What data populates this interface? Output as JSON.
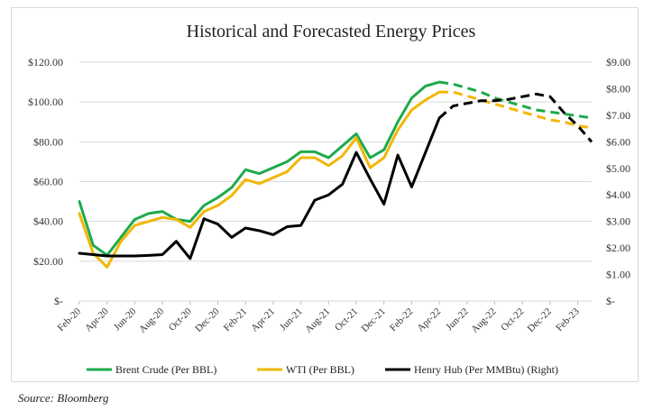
{
  "chart_data": {
    "type": "line",
    "title": "Historical and Forecasted Energy Prices",
    "x": [
      "Feb-20",
      "Mar-20",
      "Apr-20",
      "May-20",
      "Jun-20",
      "Jul-20",
      "Aug-20",
      "Sep-20",
      "Oct-20",
      "Nov-20",
      "Dec-20",
      "Jan-21",
      "Feb-21",
      "Mar-21",
      "Apr-21",
      "May-21",
      "Jun-21",
      "Jul-21",
      "Aug-21",
      "Sep-21",
      "Oct-21",
      "Nov-21",
      "Dec-21",
      "Jan-22",
      "Feb-22",
      "Mar-22",
      "Apr-22",
      "May-22",
      "Jun-22",
      "Jul-22",
      "Aug-22",
      "Sep-22",
      "Oct-22",
      "Nov-22",
      "Dec-22",
      "Jan-23",
      "Feb-23",
      "Mar-23"
    ],
    "x_tick_labels": [
      "Feb-20",
      "Apr-20",
      "Jun-20",
      "Aug-20",
      "Oct-20",
      "Dec-20",
      "Feb-21",
      "Apr-21",
      "Jun-21",
      "Aug-21",
      "Oct-21",
      "Dec-21",
      "Feb-22",
      "Apr-22",
      "Jun-22",
      "Aug-22",
      "Oct-22",
      "Dec-22",
      "Feb-23"
    ],
    "y_left": {
      "ylim": [
        0,
        120
      ],
      "ticks": [
        "$-",
        "$20.00",
        "$40.00",
        "$60.00",
        "$80.00",
        "$100.00",
        "$120.00"
      ]
    },
    "y_right": {
      "ylim": [
        0,
        9
      ],
      "ticks": [
        "$-",
        "$1.00",
        "$2.00",
        "$3.00",
        "$4.00",
        "$5.00",
        "$6.00",
        "$7.00",
        "$8.00",
        "$9.00"
      ]
    },
    "grid": "horizontal",
    "legend_position": "bottom",
    "forecast_start": "Apr-22",
    "series": [
      {
        "name": "Brent Crude (Per BBL)",
        "axis": "left",
        "color": "#1eaa4b",
        "values": [
          50,
          28,
          23,
          32,
          41,
          44,
          45,
          41,
          40,
          48,
          52,
          57,
          66,
          64,
          67,
          70,
          75,
          75,
          72,
          78,
          84,
          72,
          76,
          90,
          102,
          108,
          110,
          109,
          107,
          105,
          102,
          100,
          98,
          96,
          95,
          94,
          93,
          92
        ]
      },
      {
        "name": "WTI (Per BBL)",
        "axis": "left",
        "color": "#f2b705",
        "values": [
          44,
          24,
          17,
          30,
          38,
          40,
          42,
          41,
          37,
          45,
          48,
          53,
          61,
          59,
          62,
          65,
          72,
          72,
          68,
          73,
          82,
          67,
          72,
          86,
          96,
          101,
          105,
          105,
          103,
          101,
          99,
          97,
          95,
          93,
          91,
          90,
          88,
          87
        ]
      },
      {
        "name": "Henry Hub (Per MMBtu) (Right)",
        "axis": "right",
        "color": "#000000",
        "values": [
          1.8,
          1.75,
          1.7,
          1.7,
          1.7,
          1.72,
          1.75,
          2.25,
          1.6,
          3.1,
          2.9,
          2.4,
          2.75,
          2.65,
          2.5,
          2.8,
          2.85,
          3.8,
          4.0,
          4.4,
          5.6,
          4.6,
          3.65,
          5.5,
          4.3,
          5.6,
          6.9,
          7.35,
          7.45,
          7.55,
          7.55,
          7.6,
          7.7,
          7.8,
          7.7,
          7.1,
          6.6,
          6.0
        ]
      }
    ]
  },
  "source": "Source: Bloomberg"
}
